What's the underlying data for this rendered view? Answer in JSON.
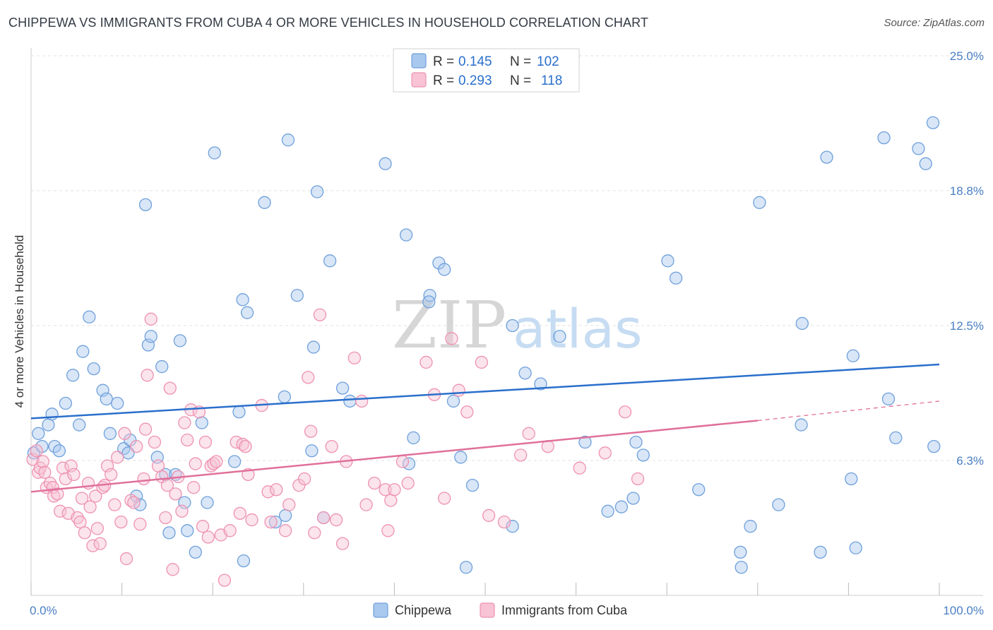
{
  "title": "CHIPPEWA VS IMMIGRANTS FROM CUBA 4 OR MORE VEHICLES IN HOUSEHOLD CORRELATION CHART",
  "source": "Source: ZipAtlas.com",
  "watermark": {
    "zip": "ZIP",
    "atlas": "atlas"
  },
  "colors": {
    "blue": "#6fa0dc",
    "blue_fill": "#a9c8ee",
    "blue_line": "#2a6fcc",
    "pink": "#ee92b2",
    "pink_fill": "#f7c3d5",
    "pink_line": "#e0709a",
    "grid": "#e2e2e2",
    "tick_text": "#4a7fc4"
  },
  "legend": {
    "rows": [
      {
        "r_label": "R =",
        "r_value": "0.145",
        "n_label": "N =",
        "n_value": "102"
      },
      {
        "r_label": "R =",
        "r_value": "0.293",
        "n_label": "N =",
        "n_value": "118"
      }
    ]
  },
  "chart_data": {
    "type": "scatter",
    "title": "CHIPPEWA VS IMMIGRANTS FROM CUBA 4 OR MORE VEHICLES IN HOUSEHOLD CORRELATION CHART",
    "xlabel": "",
    "ylabel": "4 or more Vehicles in Household",
    "xlim": [
      0,
      100
    ],
    "ylim": [
      0,
      25
    ],
    "x_tick_labels": [
      "0.0%",
      "100.0%"
    ],
    "y_ticks": [
      6.25,
      12.5,
      18.75,
      25.0
    ],
    "y_tick_labels": [
      "6.3%",
      "12.5%",
      "18.8%",
      "25.0%"
    ],
    "grid": true,
    "legend_position": "top-center",
    "series": [
      {
        "name": "Chippewa",
        "color": "#6fa0dc",
        "trend": {
          "x": [
            0,
            100
          ],
          "y": [
            8.2,
            10.7
          ]
        },
        "points": [
          [
            0.3,
            6.6
          ],
          [
            0.8,
            7.5
          ],
          [
            1.2,
            6.9
          ],
          [
            1.9,
            7.9
          ],
          [
            2.3,
            8.4
          ],
          [
            2.6,
            6.9
          ],
          [
            3.1,
            6.7
          ],
          [
            3.8,
            8.9
          ],
          [
            4.6,
            10.2
          ],
          [
            5.3,
            7.9
          ],
          [
            5.7,
            11.3
          ],
          [
            6.4,
            12.9
          ],
          [
            6.9,
            10.5
          ],
          [
            7.9,
            9.5
          ],
          [
            8.3,
            9.1
          ],
          [
            8.7,
            7.5
          ],
          [
            9.5,
            8.9
          ],
          [
            10.2,
            6.8
          ],
          [
            10.7,
            6.6
          ],
          [
            10.9,
            7.2
          ],
          [
            11.6,
            4.6
          ],
          [
            12.0,
            4.2
          ],
          [
            12.6,
            18.1
          ],
          [
            12.9,
            11.6
          ],
          [
            13.2,
            12.0
          ],
          [
            13.9,
            6.4
          ],
          [
            14.4,
            10.6
          ],
          [
            14.8,
            5.6
          ],
          [
            15.2,
            2.9
          ],
          [
            15.9,
            5.6
          ],
          [
            16.4,
            11.8
          ],
          [
            16.9,
            4.3
          ],
          [
            17.2,
            3.0
          ],
          [
            18.1,
            2.0
          ],
          [
            18.8,
            8.0
          ],
          [
            19.4,
            4.3
          ],
          [
            20.2,
            20.5
          ],
          [
            22.4,
            6.2
          ],
          [
            22.9,
            8.5
          ],
          [
            23.3,
            13.7
          ],
          [
            23.8,
            13.1
          ],
          [
            23.4,
            1.6
          ],
          [
            25.7,
            18.2
          ],
          [
            26.9,
            3.4
          ],
          [
            27.9,
            9.2
          ],
          [
            28.0,
            3.7
          ],
          [
            28.3,
            21.1
          ],
          [
            29.3,
            13.9
          ],
          [
            30.9,
            6.7
          ],
          [
            31.1,
            11.5
          ],
          [
            31.5,
            18.7
          ],
          [
            32.2,
            3.6
          ],
          [
            32.9,
            15.5
          ],
          [
            34.3,
            9.6
          ],
          [
            35.1,
            9.0
          ],
          [
            39.0,
            20.0
          ],
          [
            41.3,
            16.7
          ],
          [
            42.1,
            7.3
          ],
          [
            41.6,
            6.1
          ],
          [
            43.9,
            13.9
          ],
          [
            43.8,
            13.6
          ],
          [
            44.9,
            15.4
          ],
          [
            45.5,
            15.1
          ],
          [
            46.5,
            9.0
          ],
          [
            47.3,
            6.4
          ],
          [
            47.9,
            1.3
          ],
          [
            48.6,
            5.1
          ],
          [
            53.0,
            3.2
          ],
          [
            53.0,
            12.5
          ],
          [
            54.4,
            10.3
          ],
          [
            56.1,
            9.8
          ],
          [
            58.2,
            12.0
          ],
          [
            61.0,
            7.1
          ],
          [
            63.5,
            3.9
          ],
          [
            65.0,
            4.1
          ],
          [
            66.3,
            4.5
          ],
          [
            66.6,
            7.1
          ],
          [
            67.4,
            6.5
          ],
          [
            70.1,
            15.5
          ],
          [
            71.0,
            14.7
          ],
          [
            73.5,
            4.9
          ],
          [
            78.2,
            1.3
          ],
          [
            78.1,
            2.0
          ],
          [
            79.2,
            3.2
          ],
          [
            80.2,
            18.2
          ],
          [
            82.3,
            4.2
          ],
          [
            84.8,
            7.9
          ],
          [
            84.9,
            12.6
          ],
          [
            86.9,
            2.0
          ],
          [
            87.6,
            20.3
          ],
          [
            90.5,
            11.1
          ],
          [
            90.3,
            5.4
          ],
          [
            90.8,
            2.2
          ],
          [
            94.4,
            9.1
          ],
          [
            93.9,
            21.2
          ],
          [
            95.2,
            7.3
          ],
          [
            97.7,
            20.7
          ],
          [
            98.5,
            20.0
          ],
          [
            99.3,
            21.9
          ],
          [
            99.4,
            6.9
          ]
        ]
      },
      {
        "name": "Immigrants from Cuba",
        "color": "#ee92b2",
        "trend": {
          "x": [
            0,
            80
          ],
          "y": [
            4.8,
            8.1
          ]
        },
        "trend_extension": {
          "x": [
            80,
            100
          ],
          "y": [
            8.1,
            9.0
          ]
        },
        "points": [
          [
            0.2,
            6.3
          ],
          [
            0.6,
            6.7
          ],
          [
            0.8,
            5.7
          ],
          [
            1.0,
            5.9
          ],
          [
            1.3,
            6.2
          ],
          [
            1.5,
            5.7
          ],
          [
            1.7,
            5.0
          ],
          [
            2.1,
            5.2
          ],
          [
            2.4,
            5.0
          ],
          [
            2.5,
            4.6
          ],
          [
            2.9,
            4.7
          ],
          [
            3.2,
            3.9
          ],
          [
            3.5,
            5.9
          ],
          [
            3.8,
            5.4
          ],
          [
            4.1,
            3.8
          ],
          [
            4.4,
            6.0
          ],
          [
            4.7,
            5.6
          ],
          [
            5.1,
            3.6
          ],
          [
            5.4,
            3.4
          ],
          [
            5.6,
            4.5
          ],
          [
            5.9,
            2.9
          ],
          [
            6.3,
            5.2
          ],
          [
            6.5,
            4.1
          ],
          [
            6.8,
            2.3
          ],
          [
            7.1,
            4.6
          ],
          [
            7.3,
            3.1
          ],
          [
            7.6,
            2.4
          ],
          [
            7.9,
            5.0
          ],
          [
            8.1,
            5.1
          ],
          [
            8.4,
            6.0
          ],
          [
            8.8,
            5.6
          ],
          [
            9.2,
            4.2
          ],
          [
            9.5,
            6.4
          ],
          [
            9.9,
            3.4
          ],
          [
            10.3,
            7.5
          ],
          [
            10.5,
            1.7
          ],
          [
            11.0,
            4.4
          ],
          [
            11.3,
            4.3
          ],
          [
            11.6,
            6.9
          ],
          [
            12.0,
            3.3
          ],
          [
            12.4,
            5.4
          ],
          [
            12.6,
            7.7
          ],
          [
            12.8,
            10.2
          ],
          [
            13.2,
            12.8
          ],
          [
            13.6,
            7.1
          ],
          [
            14.0,
            6.0
          ],
          [
            14.4,
            5.5
          ],
          [
            14.8,
            3.6
          ],
          [
            15.0,
            5.1
          ],
          [
            15.3,
            9.6
          ],
          [
            15.6,
            1.2
          ],
          [
            15.9,
            4.7
          ],
          [
            16.2,
            5.5
          ],
          [
            16.6,
            3.9
          ],
          [
            16.9,
            8.0
          ],
          [
            17.2,
            7.2
          ],
          [
            17.6,
            8.6
          ],
          [
            17.9,
            5.0
          ],
          [
            18.1,
            6.1
          ],
          [
            18.5,
            8.5
          ],
          [
            18.9,
            3.2
          ],
          [
            19.2,
            7.1
          ],
          [
            19.5,
            2.7
          ],
          [
            19.8,
            6.0
          ],
          [
            20.1,
            6.1
          ],
          [
            20.4,
            6.2
          ],
          [
            20.9,
            2.8
          ],
          [
            21.3,
            0.7
          ],
          [
            21.9,
            3.0
          ],
          [
            22.6,
            7.1
          ],
          [
            23.0,
            3.8
          ],
          [
            23.3,
            7.0
          ],
          [
            23.6,
            6.9
          ],
          [
            23.9,
            5.6
          ],
          [
            24.3,
            3.5
          ],
          [
            25.4,
            8.8
          ],
          [
            26.1,
            4.8
          ],
          [
            26.4,
            3.4
          ],
          [
            27.0,
            4.9
          ],
          [
            28.0,
            3.0
          ],
          [
            28.4,
            4.2
          ],
          [
            29.5,
            5.1
          ],
          [
            30.1,
            5.4
          ],
          [
            30.5,
            10.1
          ],
          [
            30.8,
            7.6
          ],
          [
            31.2,
            2.9
          ],
          [
            31.8,
            13.0
          ],
          [
            32.2,
            3.6
          ],
          [
            33.1,
            6.9
          ],
          [
            33.6,
            3.5
          ],
          [
            34.3,
            2.4
          ],
          [
            34.7,
            6.2
          ],
          [
            35.6,
            11.0
          ],
          [
            36.4,
            9.0
          ],
          [
            36.9,
            4.2
          ],
          [
            37.8,
            5.2
          ],
          [
            39.0,
            4.9
          ],
          [
            39.3,
            3.0
          ],
          [
            39.6,
            4.4
          ],
          [
            40.0,
            4.9
          ],
          [
            40.9,
            6.2
          ],
          [
            41.5,
            5.2
          ],
          [
            43.5,
            10.8
          ],
          [
            44.4,
            9.3
          ],
          [
            45.5,
            4.5
          ],
          [
            46.3,
            11.9
          ],
          [
            47.1,
            9.5
          ],
          [
            48.0,
            8.5
          ],
          [
            49.6,
            10.8
          ],
          [
            50.4,
            3.7
          ],
          [
            52.1,
            3.4
          ],
          [
            53.9,
            6.5
          ],
          [
            54.8,
            7.5
          ],
          [
            56.9,
            6.9
          ],
          [
            60.4,
            5.9
          ],
          [
            63.2,
            6.6
          ],
          [
            65.4,
            8.5
          ],
          [
            66.8,
            5.4
          ]
        ]
      }
    ]
  }
}
